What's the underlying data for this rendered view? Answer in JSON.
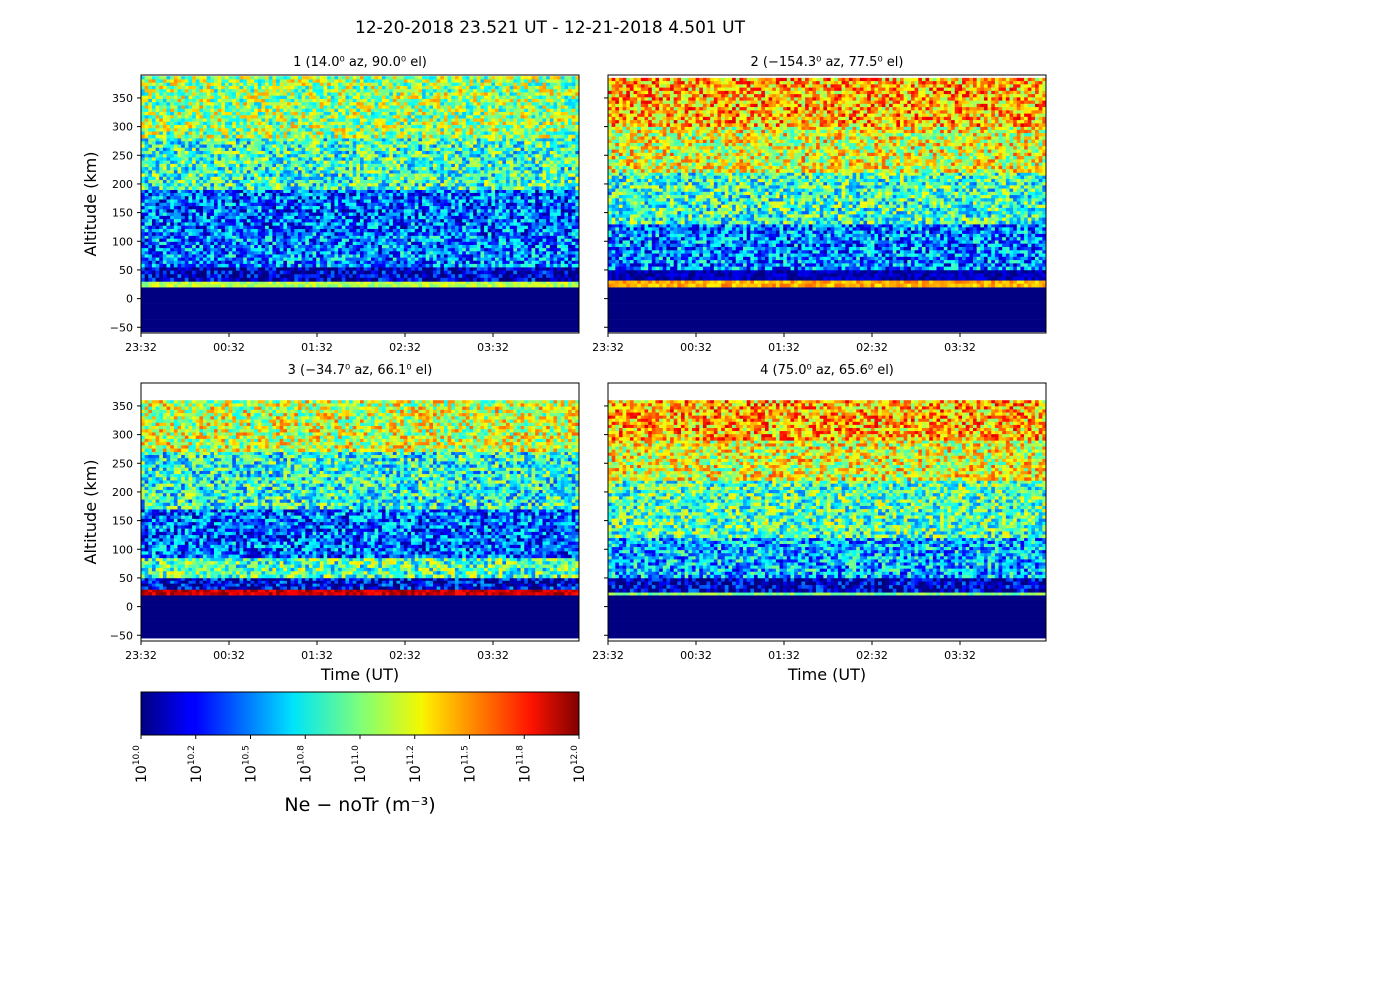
{
  "figure": {
    "title": "12-20-2018 23.521 UT - 12-21-2018 4.501 UT"
  },
  "colorbar": {
    "colormap": "jet",
    "label": "Ne − noTr (m⁻³)",
    "scale": "log",
    "range": [
      10.0,
      12.0
    ],
    "ticks": [
      {
        "base": "10",
        "exp": "10.0"
      },
      {
        "base": "10",
        "exp": "10.2"
      },
      {
        "base": "10",
        "exp": "10.5"
      },
      {
        "base": "10",
        "exp": "10.8"
      },
      {
        "base": "10",
        "exp": "11.0"
      },
      {
        "base": "10",
        "exp": "11.2"
      },
      {
        "base": "10",
        "exp": "11.5"
      },
      {
        "base": "10",
        "exp": "11.8"
      },
      {
        "base": "10",
        "exp": "12.0"
      }
    ]
  },
  "chart_data": [
    {
      "type": "heatmap",
      "title": "1 (14.0⁰ az,  90.0⁰ el)",
      "ylabel": "Altitude (km)",
      "xlabel": "",
      "x_ticks": [
        "23:32",
        "00:32",
        "01:32",
        "02:32",
        "03:32"
      ],
      "y_ticks": [
        "350",
        "300",
        "250",
        "200",
        "150",
        "100",
        "50",
        "0",
        "−50"
      ],
      "ylim": [
        -60,
        390
      ],
      "data_top_km": 388,
      "layers": [
        {
          "from_km": -58,
          "to_km": 20,
          "log10_ne": 10.0
        },
        {
          "from_km": 20,
          "to_km": 30,
          "log10_ne": 11.1
        },
        {
          "from_km": 30,
          "to_km": 55,
          "log10_ne": 10.1
        },
        {
          "from_km": 55,
          "to_km": 110,
          "log10_ne": 10.5
        },
        {
          "from_km": 110,
          "to_km": 190,
          "log10_ne": 10.45
        },
        {
          "from_km": 190,
          "to_km": 280,
          "log10_ne": 10.85
        },
        {
          "from_km": 280,
          "to_km": 388,
          "log10_ne": 11.05
        }
      ]
    },
    {
      "type": "heatmap",
      "title": "2 (−154.3⁰ az,  77.5⁰ el)",
      "ylabel": "",
      "xlabel": "",
      "x_ticks": [
        "23:32",
        "00:32",
        "01:32",
        "02:32",
        "03:32"
      ],
      "y_ticks": [],
      "ylim": [
        -60,
        390
      ],
      "data_top_km": 385,
      "layers": [
        {
          "from_km": -58,
          "to_km": 20,
          "log10_ne": 10.0
        },
        {
          "from_km": 20,
          "to_km": 32,
          "log10_ne": 11.4
        },
        {
          "from_km": 32,
          "to_km": 50,
          "log10_ne": 10.1
        },
        {
          "from_km": 50,
          "to_km": 130,
          "log10_ne": 10.5
        },
        {
          "from_km": 130,
          "to_km": 220,
          "log10_ne": 10.85
        },
        {
          "from_km": 220,
          "to_km": 300,
          "log10_ne": 11.2
        },
        {
          "from_km": 300,
          "to_km": 385,
          "log10_ne": 11.4
        }
      ]
    },
    {
      "type": "heatmap",
      "title": "3 (−34.7⁰ az,  66.1⁰ el)",
      "ylabel": "Altitude (km)",
      "xlabel": "Time (UT)",
      "x_ticks": [
        "23:32",
        "00:32",
        "01:32",
        "02:32",
        "03:32"
      ],
      "y_ticks": [
        "350",
        "300",
        "250",
        "200",
        "150",
        "100",
        "50",
        "0",
        "−50"
      ],
      "ylim": [
        -60,
        390
      ],
      "data_top_km": 360,
      "layers": [
        {
          "from_km": -55,
          "to_km": 20,
          "log10_ne": 10.0
        },
        {
          "from_km": 20,
          "to_km": 30,
          "log10_ne": 11.85
        },
        {
          "from_km": 30,
          "to_km": 50,
          "log10_ne": 10.2
        },
        {
          "from_km": 50,
          "to_km": 85,
          "log10_ne": 10.9
        },
        {
          "from_km": 85,
          "to_km": 170,
          "log10_ne": 10.45
        },
        {
          "from_km": 170,
          "to_km": 270,
          "log10_ne": 10.8
        },
        {
          "from_km": 270,
          "to_km": 360,
          "log10_ne": 11.15
        }
      ]
    },
    {
      "type": "heatmap",
      "title": "4 (75.0⁰ az,  65.6⁰ el)",
      "ylabel": "",
      "xlabel": "Time (UT)",
      "x_ticks": [
        "23:32",
        "00:32",
        "01:32",
        "02:32",
        "03:32"
      ],
      "y_ticks": [],
      "ylim": [
        -60,
        390
      ],
      "data_top_km": 360,
      "layers": [
        {
          "from_km": -55,
          "to_km": 20,
          "log10_ne": 10.0
        },
        {
          "from_km": 20,
          "to_km": 25,
          "log10_ne": 11.0
        },
        {
          "from_km": 25,
          "to_km": 50,
          "log10_ne": 10.1
        },
        {
          "from_km": 50,
          "to_km": 120,
          "log10_ne": 10.6
        },
        {
          "from_km": 120,
          "to_km": 220,
          "log10_ne": 10.9
        },
        {
          "from_km": 220,
          "to_km": 290,
          "log10_ne": 11.2
        },
        {
          "from_km": 290,
          "to_km": 360,
          "log10_ne": 11.4
        }
      ]
    }
  ]
}
